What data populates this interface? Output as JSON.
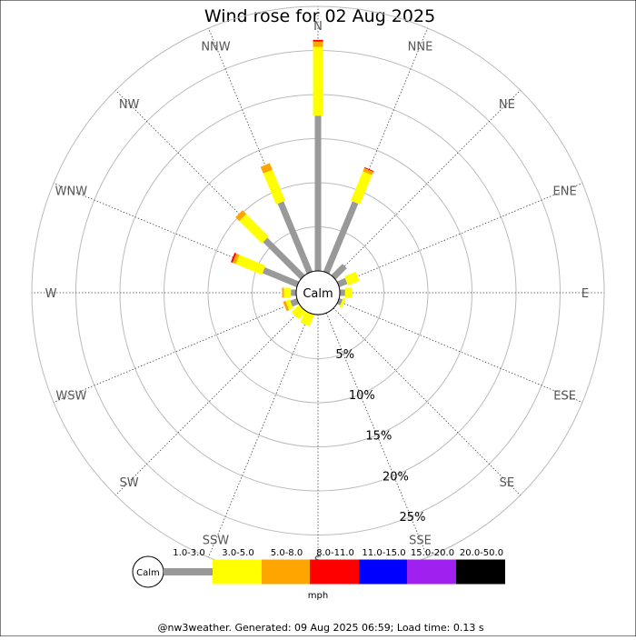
{
  "chart_data": {
    "type": "wind-rose",
    "title": "Wind rose for 02 Aug 2025",
    "center_label": "Calm",
    "directions": [
      "N",
      "NNE",
      "NE",
      "ENE",
      "E",
      "ESE",
      "SE",
      "SSE",
      "S",
      "SSW",
      "SW",
      "WSW",
      "W",
      "WNW",
      "NW",
      "NNW"
    ],
    "rings": [
      {
        "value": 5,
        "label": "5%"
      },
      {
        "value": 10,
        "label": "10%"
      },
      {
        "value": 15,
        "label": "15%"
      },
      {
        "value": 20,
        "label": "20%"
      },
      {
        "value": 25,
        "label": "25%"
      }
    ],
    "speed_unit": "mph",
    "speed_bins": [
      {
        "label": "1.0-3.0",
        "color": "#999999"
      },
      {
        "label": "3.0-5.0",
        "color": "#ffff00"
      },
      {
        "label": "5.0-8.0",
        "color": "#ffa500"
      },
      {
        "label": "8.0-11.0",
        "color": "#ff0000"
      },
      {
        "label": "11.0-15.0",
        "color": "#0000ff"
      },
      {
        "label": "15.0-20.0",
        "color": "#a020f0"
      },
      {
        "label": "20.0-50.0",
        "color": "#000000"
      }
    ],
    "series": [
      {
        "name": "1.0-3.0",
        "values": [
          17.6,
          8.6,
          1.8,
          1.0,
          0.6,
          0.4,
          0,
          0,
          0,
          0,
          0,
          0.8,
          0.6,
          4.2,
          6.0,
          8.6
        ]
      },
      {
        "name": "3.0-5.0",
        "values": [
          7.8,
          3.6,
          0,
          1.4,
          0.8,
          0.3,
          0,
          0,
          0,
          1.4,
          1.2,
          0.5,
          0.8,
          3.2,
          3.6,
          3.8
        ]
      },
      {
        "name": "5.0-8.0",
        "values": [
          0.6,
          0.4,
          0,
          0,
          0,
          0,
          0,
          0,
          0,
          0,
          0,
          0.3,
          0.2,
          0.4,
          0.6,
          0.8
        ]
      },
      {
        "name": "8.0-11.0",
        "values": [
          0.2,
          0.1,
          0,
          0,
          0,
          0,
          0,
          0,
          0,
          0,
          0,
          0,
          0,
          0.2,
          0,
          0
        ]
      },
      {
        "name": "11.0-15.0",
        "values": [
          0,
          0,
          0,
          0,
          0,
          0,
          0,
          0,
          0,
          0,
          0,
          0,
          0,
          0,
          0,
          0
        ]
      },
      {
        "name": "15.0-20.0",
        "values": [
          0,
          0,
          0,
          0,
          0,
          0,
          0,
          0,
          0,
          0,
          0,
          0,
          0,
          0,
          0,
          0
        ]
      },
      {
        "name": "20.0-50.0",
        "values": [
          0,
          0,
          0,
          0,
          0,
          0,
          0,
          0,
          0,
          0,
          0,
          0,
          0,
          0,
          0,
          0
        ]
      }
    ],
    "footer": "@nw3weather. Generated: 09 Aug 2025 06:59; Load time: 0.13 s"
  }
}
